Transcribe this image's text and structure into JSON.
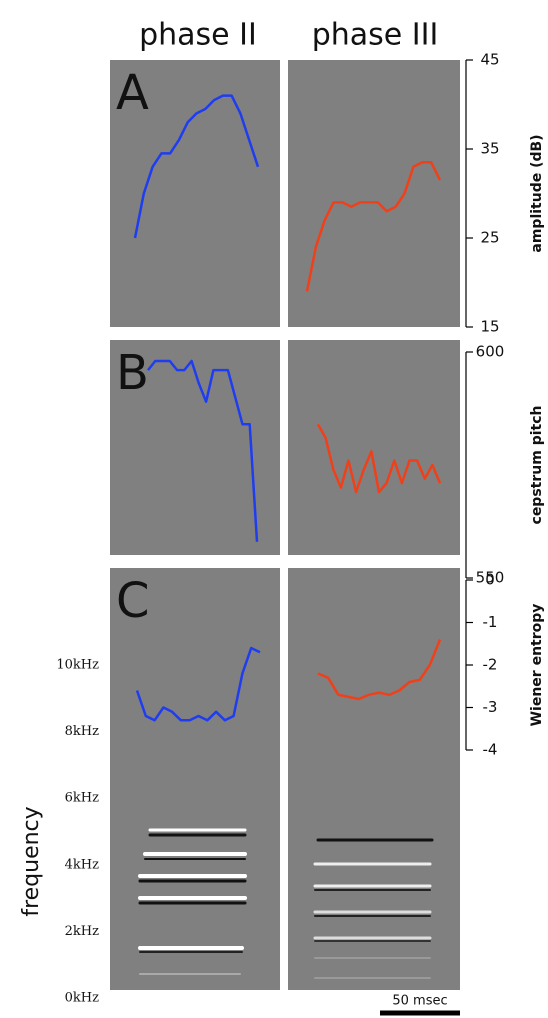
{
  "columns": [
    "phase II",
    "phase III"
  ],
  "scale_bar": "50 msec",
  "chart_data": [
    {
      "type": "line",
      "panel_label": "A",
      "y2label": "amplitude (dB)",
      "y2lim": [
        15,
        45
      ],
      "y2ticks": [
        15,
        25,
        35,
        45
      ],
      "series": [
        {
          "color": "#1f3df0",
          "axis": "y2",
          "values": [
            25,
            30,
            33,
            34.5,
            34.5,
            36,
            38,
            39,
            39.5,
            40.5,
            41,
            41,
            39,
            36,
            33
          ]
        },
        {
          "color": "#f0401a",
          "axis": "y2",
          "values": [
            19,
            24,
            27,
            29,
            29,
            28.5,
            29,
            29,
            29,
            28,
            28.5,
            30,
            33,
            33.5,
            33.5,
            31.5
          ]
        }
      ]
    },
    {
      "type": "line",
      "panel_label": "B",
      "y2label": "cepstrum pitch",
      "y2lim": [
        550,
        600
      ],
      "y2ticks": [
        550,
        600
      ],
      "series": [
        {
          "color": "#1f3df0",
          "axis": "y2",
          "values": [
            596,
            598,
            598,
            598,
            596,
            596,
            598,
            593,
            589,
            596,
            596,
            596,
            590,
            584,
            584,
            558
          ]
        },
        {
          "color": "#f0401a",
          "axis": "y2",
          "values": [
            584,
            581,
            574,
            570,
            576,
            569,
            574,
            578,
            569,
            571,
            576,
            571,
            576,
            576,
            572,
            575,
            571
          ]
        }
      ]
    },
    {
      "type": "line",
      "panel_label": "C",
      "ylabel": "frequency",
      "ylim": [
        0,
        10
      ],
      "yticks": [
        {
          "value": 0,
          "label": "0kHz"
        },
        {
          "value": 2,
          "label": "2kHz"
        },
        {
          "value": 4,
          "label": "4kHz"
        },
        {
          "value": 6,
          "label": "6kHz"
        },
        {
          "value": 8,
          "label": "8kHz"
        },
        {
          "value": 10,
          "label": "10kHz"
        }
      ],
      "y2label": "Wiener entropy",
      "y2lim": [
        -4,
        0
      ],
      "y2ticks": [
        -4,
        -3,
        -2,
        -1,
        0
      ],
      "series": [
        {
          "color": "#1f3df0",
          "axis": "y2",
          "values": [
            -2.6,
            -3.2,
            -3.3,
            -3.0,
            -3.1,
            -3.3,
            -3.3,
            -3.2,
            -3.3,
            -3.1,
            -3.3,
            -3.2,
            -2.2,
            -1.6,
            -1.7
          ]
        },
        {
          "color": "#f0401a",
          "axis": "y2",
          "values": [
            -2.2,
            -2.3,
            -2.7,
            -2.75,
            -2.8,
            -2.7,
            -2.65,
            -2.7,
            -2.6,
            -2.4,
            -2.35,
            -2.0,
            -1.4
          ]
        }
      ]
    }
  ]
}
